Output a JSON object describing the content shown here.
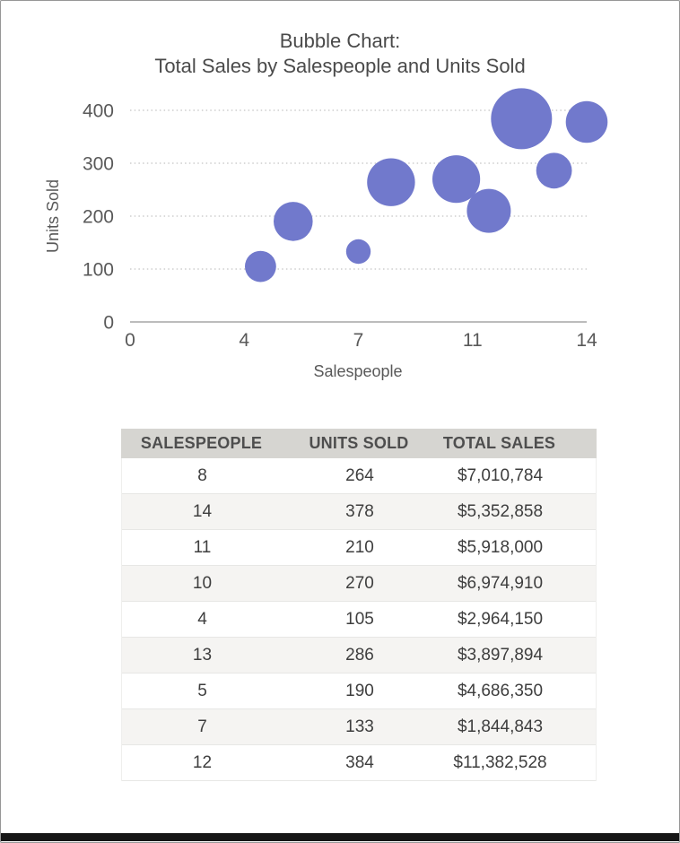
{
  "title": {
    "line1": "Bubble Chart:",
    "line2": "Total Sales by Salespeople and Units Sold"
  },
  "chart_data": {
    "type": "scatter",
    "variant": "bubble",
    "title": "Bubble Chart: Total Sales by Salespeople and Units Sold",
    "xlabel": "Salespeople",
    "ylabel": "Units Sold",
    "xlim": [
      0,
      14
    ],
    "ylim": [
      0,
      400
    ],
    "x_tick_values": [
      0,
      3.5,
      7,
      10.5,
      14
    ],
    "x_tick_labels": [
      "0",
      "4",
      "7",
      "11",
      "14"
    ],
    "y_tick_values": [
      0,
      100,
      200,
      300,
      400
    ],
    "y_tick_labels": [
      "0",
      "100",
      "200",
      "300",
      "400"
    ],
    "grid": "horizontal dotted gridlines, solid baseline at y=0",
    "legend": "none",
    "bubble_size_represents": "Total Sales (USD)",
    "points": [
      {
        "x": 8,
        "y": 264,
        "size": 7010784
      },
      {
        "x": 14,
        "y": 378,
        "size": 5352858
      },
      {
        "x": 11,
        "y": 210,
        "size": 5918000
      },
      {
        "x": 10,
        "y": 270,
        "size": 6974910
      },
      {
        "x": 4,
        "y": 105,
        "size": 2964150
      },
      {
        "x": 13,
        "y": 286,
        "size": 3897894
      },
      {
        "x": 5,
        "y": 190,
        "size": 4686350
      },
      {
        "x": 7,
        "y": 133,
        "size": 1844843
      },
      {
        "x": 12,
        "y": 384,
        "size": 11382528
      }
    ]
  },
  "table": {
    "columns": [
      "SALESPEOPLE",
      "UNITS SOLD",
      "TOTAL SALES"
    ],
    "rows": [
      [
        "8",
        "264",
        "$7,010,784"
      ],
      [
        "14",
        "378",
        "$5,352,858"
      ],
      [
        "11",
        "210",
        "$5,918,000"
      ],
      [
        "10",
        "270",
        "$6,974,910"
      ],
      [
        "4",
        "105",
        "$2,964,150"
      ],
      [
        "13",
        "286",
        "$3,897,894"
      ],
      [
        "5",
        "190",
        "$4,686,350"
      ],
      [
        "7",
        "133",
        "$1,844,843"
      ],
      [
        "12",
        "384",
        "$11,382,528"
      ]
    ]
  },
  "colors": {
    "bubble": "#7179cc",
    "title_text": "#4a4a4a",
    "tick_text": "#595959",
    "grid": "#c3c3c3",
    "axis_line": "#a6a6a6",
    "table_header_bg": "#d6d5d1",
    "table_header_text": "#4e4e4e",
    "table_stripe": "#f5f4f2",
    "table_border": "#e7e7e5",
    "cell_text": "#3e3e3e"
  }
}
